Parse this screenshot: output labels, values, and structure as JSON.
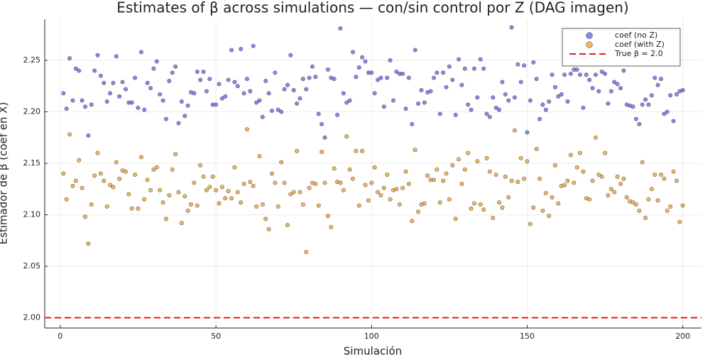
{
  "chart_data": {
    "type": "scatter",
    "title": "Estimates of β across simulations — con/sin control por Z (DAG imagen)",
    "xlabel": "Simulación",
    "ylabel": "Estimador de β (coef en X)",
    "xlim": [
      -5,
      206
    ],
    "ylim": [
      1.99,
      2.29
    ],
    "xticks": [
      0,
      50,
      100,
      150,
      200
    ],
    "yticks": [
      {
        "value": 2.0,
        "label": "2.00"
      },
      {
        "value": 2.05,
        "label": "2.05"
      },
      {
        "value": 2.1,
        "label": "2.10"
      },
      {
        "value": 2.15,
        "label": "2.15"
      },
      {
        "value": 2.2,
        "label": "2.20"
      },
      {
        "value": 2.25,
        "label": "2.25"
      }
    ],
    "grid": true,
    "legend": "top-right",
    "x": [
      1,
      2,
      3,
      4,
      5,
      6,
      7,
      8,
      9,
      10,
      11,
      12,
      13,
      14,
      15,
      16,
      17,
      18,
      19,
      20,
      21,
      22,
      23,
      24,
      25,
      26,
      27,
      28,
      29,
      30,
      31,
      32,
      33,
      34,
      35,
      36,
      37,
      38,
      39,
      40,
      41,
      42,
      43,
      44,
      45,
      46,
      47,
      48,
      49,
      50,
      51,
      52,
      53,
      54,
      55,
      56,
      57,
      58,
      59,
      60,
      61,
      62,
      63,
      64,
      65,
      66,
      67,
      68,
      69,
      70,
      71,
      72,
      73,
      74,
      75,
      76,
      77,
      78,
      79,
      80,
      81,
      82,
      83,
      84,
      85,
      86,
      87,
      88,
      89,
      90,
      91,
      92,
      93,
      94,
      95,
      96,
      97,
      98,
      99,
      100,
      101,
      102,
      103,
      104,
      105,
      106,
      107,
      108,
      109,
      110,
      111,
      112,
      113,
      114,
      115,
      116,
      117,
      118,
      119,
      120,
      121,
      122,
      123,
      124,
      125,
      126,
      127,
      128,
      129,
      130,
      131,
      132,
      133,
      134,
      135,
      136,
      137,
      138,
      139,
      140,
      141,
      142,
      143,
      144,
      145,
      146,
      147,
      148,
      149,
      150,
      151,
      152,
      153,
      154,
      155,
      156,
      157,
      158,
      159,
      160,
      161,
      162,
      163,
      164,
      165,
      166,
      167,
      168,
      169,
      170,
      171,
      172,
      173,
      174,
      175,
      176,
      177,
      178,
      179,
      180,
      181,
      182,
      183,
      184,
      185,
      186,
      187,
      188,
      189,
      190,
      191,
      192,
      193,
      194,
      195,
      196,
      197,
      198,
      199,
      200
    ],
    "series": [
      {
        "name": "coef (no Z)",
        "color": "#6c6ce6",
        "values": [
          2.218,
          2.203,
          2.252,
          2.211,
          2.242,
          2.24,
          2.211,
          2.205,
          2.177,
          2.207,
          2.24,
          2.255,
          2.235,
          2.228,
          2.21,
          2.218,
          2.228,
          2.254,
          2.215,
          2.229,
          2.222,
          2.209,
          2.209,
          2.233,
          2.204,
          2.258,
          2.202,
          2.228,
          2.223,
          2.242,
          2.249,
          2.217,
          2.211,
          2.193,
          2.23,
          2.238,
          2.244,
          2.189,
          2.21,
          2.196,
          2.206,
          2.219,
          2.218,
          2.239,
          2.231,
          2.239,
          2.22,
          2.232,
          2.207,
          2.207,
          2.227,
          2.213,
          2.215,
          2.231,
          2.26,
          2.229,
          2.225,
          2.261,
          2.218,
          2.232,
          2.22,
          2.264,
          2.209,
          2.211,
          2.195,
          2.23,
          2.218,
          2.201,
          2.238,
          2.202,
          2.2,
          2.222,
          2.226,
          2.255,
          2.221,
          2.208,
          2.213,
          2.232,
          2.222,
          2.233,
          2.244,
          2.234,
          2.198,
          2.188,
          2.175,
          2.241,
          2.233,
          2.232,
          2.197,
          2.281,
          2.218,
          2.209,
          2.211,
          2.258,
          2.234,
          2.243,
          2.253,
          2.249,
          2.238,
          2.238,
          2.218,
          2.231,
          2.233,
          2.205,
          2.233,
          2.25,
          2.211,
          2.239,
          2.237,
          2.237,
          2.203,
          2.233,
          2.188,
          2.26,
          2.208,
          2.221,
          2.209,
          2.219,
          2.22,
          2.233,
          2.238,
          2.198,
          2.238,
          2.224,
          2.244,
          2.231,
          2.197,
          2.251,
          2.226,
          2.242,
          2.207,
          2.202,
          2.242,
          2.214,
          2.251,
          2.242,
          2.198,
          2.195,
          2.214,
          2.204,
          2.202,
          2.229,
          2.217,
          2.211,
          2.282,
          2.214,
          2.246,
          2.229,
          2.245,
          2.18,
          2.211,
          2.248,
          2.232,
          2.193,
          2.207,
          2.202,
          2.21,
          2.236,
          2.224,
          2.215,
          2.217,
          2.236,
          2.21,
          2.237,
          2.241,
          2.241,
          2.236,
          2.204,
          2.236,
          2.231,
          2.223,
          2.236,
          2.22,
          2.239,
          2.237,
          2.208,
          2.22,
          2.229,
          2.227,
          2.223,
          2.24,
          2.207,
          2.206,
          2.205,
          2.193,
          2.188,
          2.207,
          2.212,
          2.207,
          2.216,
          2.233,
          2.226,
          2.232,
          2.198,
          2.2,
          2.216,
          2.191,
          2.217,
          2.22,
          2.221
        ]
      },
      {
        "name": "coef (with Z)",
        "color": "#eca43c",
        "values": [
          2.14,
          2.115,
          2.178,
          2.128,
          2.133,
          2.153,
          2.126,
          2.098,
          2.072,
          2.11,
          2.138,
          2.16,
          2.14,
          2.133,
          2.108,
          2.129,
          2.127,
          2.151,
          2.135,
          2.143,
          2.142,
          2.12,
          2.106,
          2.139,
          2.106,
          2.156,
          2.115,
          2.134,
          2.124,
          2.144,
          2.146,
          2.124,
          2.112,
          2.096,
          2.119,
          2.144,
          2.159,
          2.122,
          2.092,
          2.118,
          2.104,
          2.11,
          2.131,
          2.109,
          2.148,
          2.137,
          2.124,
          2.127,
          2.137,
          2.124,
          2.111,
          2.127,
          2.116,
          2.123,
          2.116,
          2.146,
          2.122,
          2.112,
          2.13,
          2.183,
          2.132,
          2.128,
          2.108,
          2.157,
          2.11,
          2.096,
          2.086,
          2.14,
          2.131,
          2.108,
          2.151,
          2.131,
          2.09,
          2.12,
          2.122,
          2.162,
          2.122,
          2.11,
          2.064,
          2.126,
          2.131,
          2.13,
          2.109,
          2.161,
          2.131,
          2.099,
          2.088,
          2.145,
          2.132,
          2.131,
          2.124,
          2.176,
          2.144,
          2.135,
          2.162,
          2.109,
          2.162,
          2.129,
          2.114,
          2.131,
          2.146,
          2.122,
          2.119,
          2.126,
          2.139,
          2.115,
          2.124,
          2.125,
          2.11,
          2.126,
          2.142,
          2.13,
          2.094,
          2.163,
          2.103,
          2.11,
          2.111,
          2.138,
          2.134,
          2.134,
          2.144,
          2.112,
          2.133,
          2.14,
          2.115,
          2.148,
          2.096,
          2.154,
          2.13,
          2.144,
          2.16,
          2.106,
          2.111,
          2.152,
          2.11,
          2.105,
          2.155,
          2.142,
          2.097,
          2.139,
          2.112,
          2.107,
          2.137,
          2.117,
          2.133,
          2.182,
          2.132,
          2.155,
          2.135,
          2.152,
          2.091,
          2.107,
          2.164,
          2.135,
          2.104,
          2.121,
          2.099,
          2.117,
          2.148,
          2.111,
          2.128,
          2.129,
          2.133,
          2.158,
          2.131,
          2.146,
          2.16,
          2.142,
          2.116,
          2.115,
          2.133,
          2.175,
          2.139,
          2.137,
          2.16,
          2.119,
          2.125,
          2.122,
          2.137,
          2.13,
          2.135,
          2.117,
          2.113,
          2.112,
          2.11,
          2.104,
          2.151,
          2.097,
          2.115,
          2.125,
          2.139,
          2.114,
          2.139,
          2.135,
          2.104,
          2.108,
          2.142,
          2.133,
          2.093,
          2.109
        ]
      }
    ],
    "hline": {
      "name": "True β = 2.0",
      "value": 2.0,
      "color": "#e8191c"
    }
  }
}
